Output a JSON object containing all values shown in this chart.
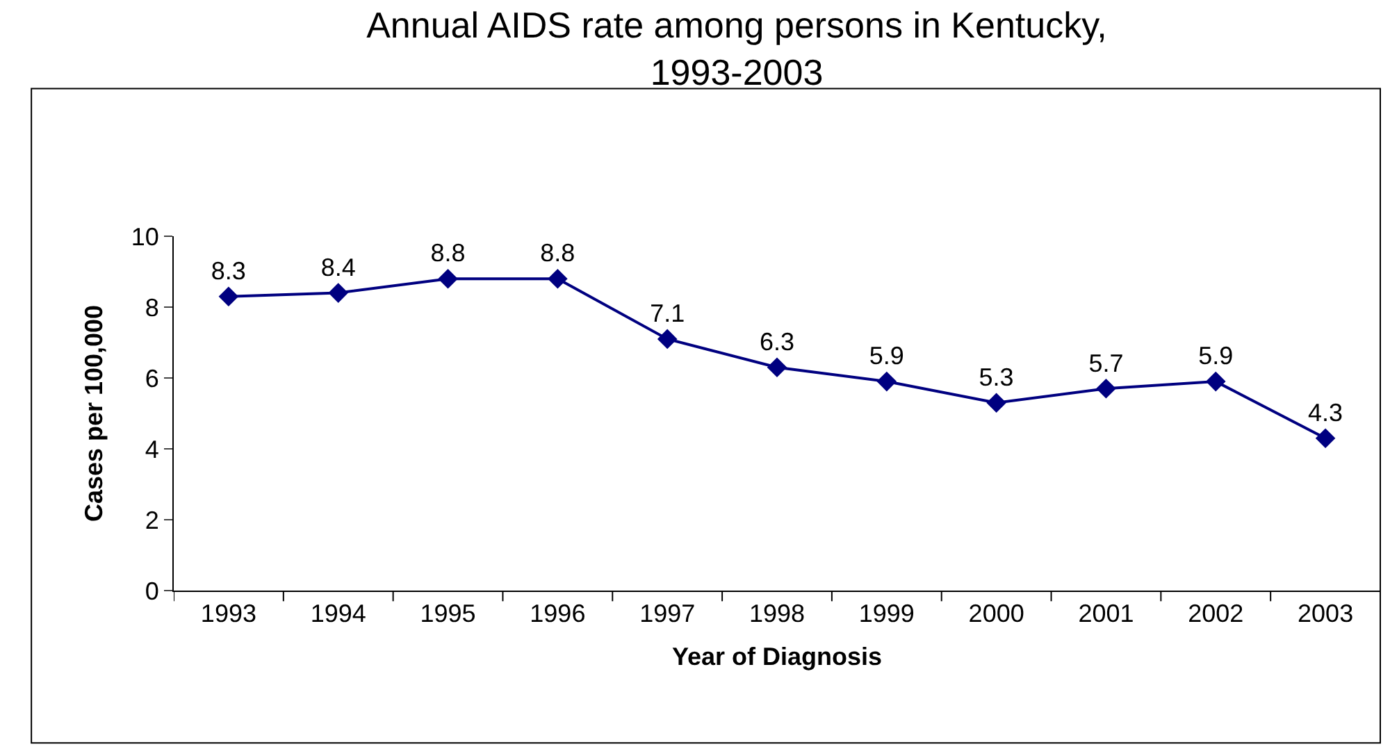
{
  "chart_data": {
    "type": "line",
    "title": "Annual AIDS rate among persons in Kentucky, 1993-2003",
    "xlabel": "Year of Diagnosis",
    "ylabel": "Cases per 100,000",
    "categories": [
      "1993",
      "1994",
      "1995",
      "1996",
      "1997",
      "1998",
      "1999",
      "2000",
      "2001",
      "2002",
      "2003"
    ],
    "series": [
      {
        "color": "#000080",
        "values": [
          8.3,
          8.4,
          8.8,
          8.8,
          7.1,
          6.3,
          5.9,
          5.3,
          5.7,
          5.9,
          4.3
        ]
      }
    ],
    "ylim": [
      0,
      10
    ],
    "yticks": [
      0,
      2,
      4,
      6,
      8,
      10
    ],
    "marker": "diamond",
    "line_style": "solid",
    "data_labels": true,
    "grid": false,
    "legend": false
  }
}
